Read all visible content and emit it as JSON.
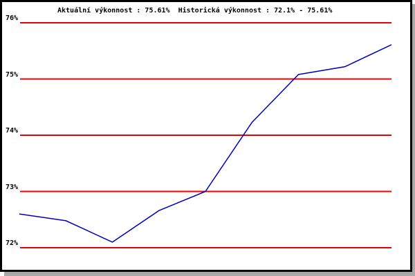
{
  "title": "Aktuální výkonnost : 75.61%  Historická výkonnost : 72.1% - 75.61%",
  "colors": {
    "background": "#ffffff",
    "frame_border": "#000000",
    "frame_shadow": "#a8a8a8",
    "grid_line": "#ee0000",
    "series_line": "#0000bb",
    "text": "#000000"
  },
  "chart_data": {
    "type": "line",
    "title": "Aktuální výkonnost : 75.61%  Historická výkonnost : 72.1% - 75.61%",
    "xlabel": "",
    "ylabel": "",
    "x": [
      1,
      2,
      3,
      4,
      5,
      6,
      7,
      8,
      9
    ],
    "series": [
      {
        "name": "výkonnost",
        "values": [
          72.6,
          72.48,
          72.1,
          72.66,
          73.0,
          74.23,
          75.08,
          75.22,
          75.61
        ]
      }
    ],
    "yticks": [
      {
        "value": 76,
        "label": "76%"
      },
      {
        "value": 75,
        "label": "75%"
      },
      {
        "value": 74,
        "label": "74%"
      },
      {
        "value": 73,
        "label": "73%"
      },
      {
        "value": 72,
        "label": "72%"
      }
    ],
    "ylim": [
      72,
      76
    ],
    "grid": "horizontal-only",
    "legend": "none",
    "annotations": {
      "current_performance": "75.61%",
      "historical_range": "72.1% - 75.61%"
    }
  }
}
